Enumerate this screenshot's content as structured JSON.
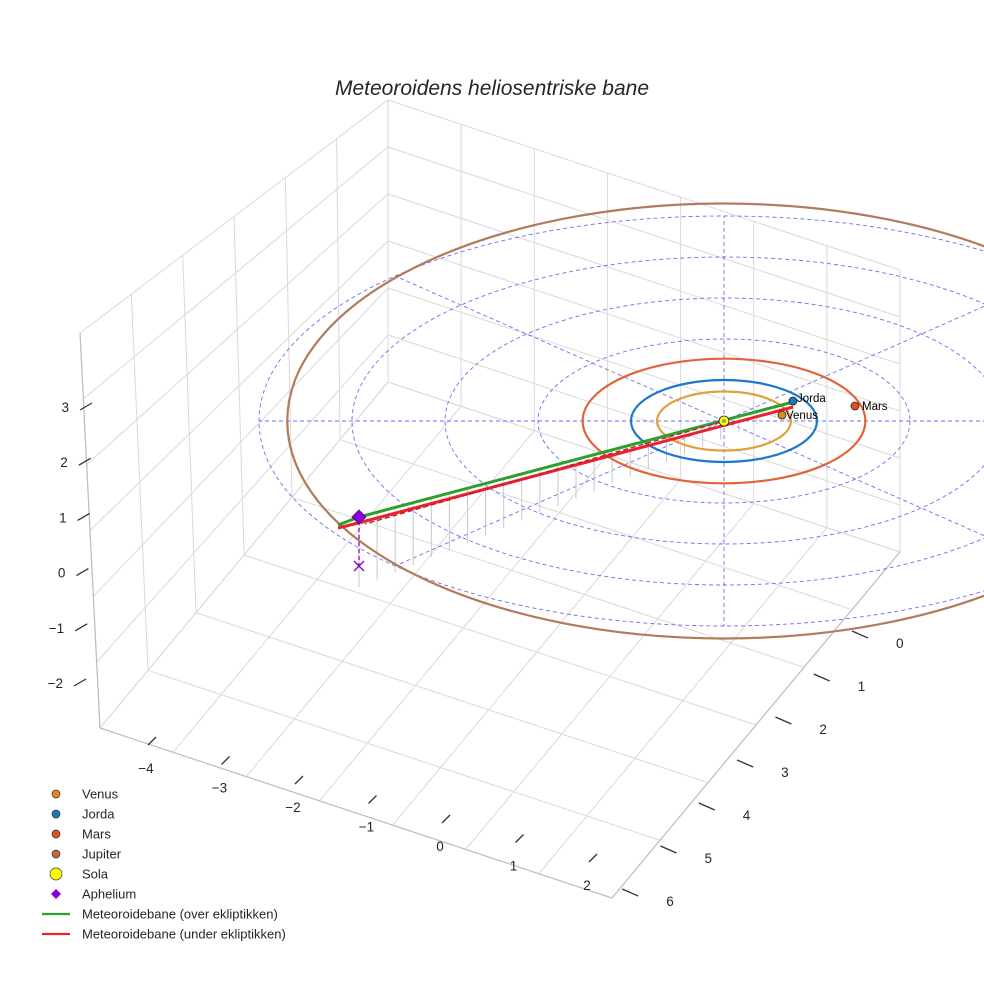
{
  "chart_data": {
    "type": "scatter3d",
    "title": "Meteoroidens heliosentriske bane",
    "axes": {
      "x": {
        "ticks": [
          "0",
          "1",
          "2",
          "3",
          "4",
          "5",
          "6"
        ]
      },
      "y": {
        "ticks": [
          "−4",
          "−3",
          "−2",
          "−1",
          "0",
          "1",
          "2"
        ]
      },
      "z": {
        "ticks": [
          "3",
          "2",
          "1",
          "0",
          "−1",
          "−2"
        ]
      }
    },
    "ecliptic_grid": {
      "rings_au": [
        1,
        2,
        3,
        4,
        5
      ],
      "radial_lines": 8,
      "style": "dashed",
      "color": "#5555ee"
    },
    "orbits": [
      {
        "name": "Venus",
        "radius_au": 0.72,
        "color": "#e0a040"
      },
      {
        "name": "Jorda",
        "radius_au": 1.0,
        "color": "#1f77cc"
      },
      {
        "name": "Mars",
        "radius_au": 1.52,
        "color": "#e0643c"
      },
      {
        "name": "Jupiter",
        "radius_au": 5.2,
        "color": "#b07c5c"
      }
    ],
    "planets": [
      {
        "name": "Venus",
        "label": "Venus",
        "color": "#e08a1e"
      },
      {
        "name": "Jorda",
        "label": "Jorda",
        "color": "#1f77b4"
      },
      {
        "name": "Mars",
        "label": "Mars",
        "color": "#e0501e"
      },
      {
        "name": "Sola",
        "label": "",
        "color": "#ffff00"
      }
    ],
    "meteoroid": {
      "above_ecliptic_color": "#2ca02c",
      "below_ecliptic_color": "#e8232d",
      "aphelium_color": "#8a00d4"
    },
    "legend": [
      {
        "label": "Venus",
        "marker": "circle",
        "color": "#e08a1e"
      },
      {
        "label": "Jorda",
        "marker": "circle",
        "color": "#1f77b4"
      },
      {
        "label": "Mars",
        "marker": "circle",
        "color": "#e0501e"
      },
      {
        "label": "Jupiter",
        "marker": "circle",
        "color": "#c0683c"
      },
      {
        "label": "Sola",
        "marker": "circle-large",
        "color": "#ffff00"
      },
      {
        "label": "Aphelium",
        "marker": "diamond",
        "color": "#8a00d4"
      },
      {
        "label": "Meteoroidebane (over ekliptikken)",
        "marker": "line",
        "color": "#2ca02c"
      },
      {
        "label": "Meteoroidebane (under ekliptikken)",
        "marker": "line",
        "color": "#e8232d"
      }
    ]
  }
}
